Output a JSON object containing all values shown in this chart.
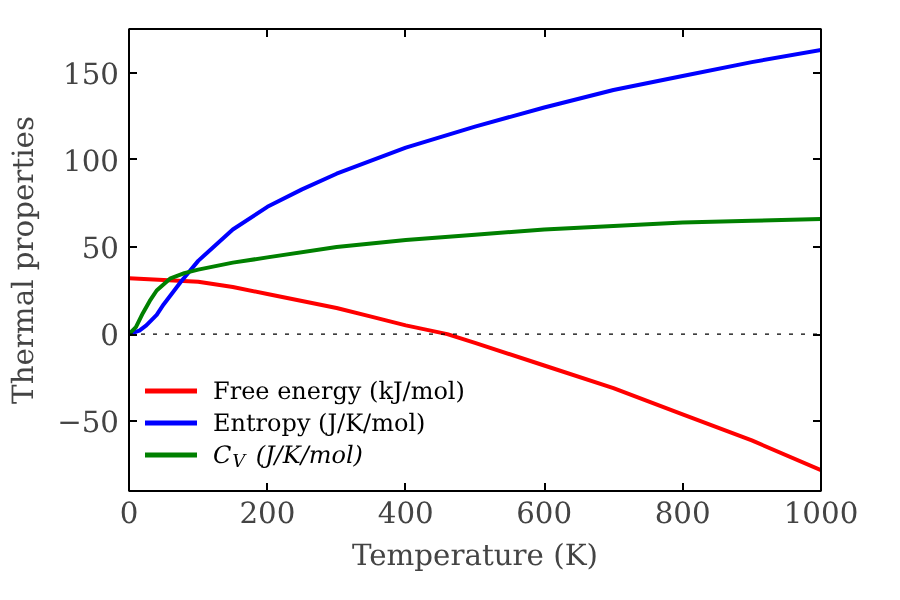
{
  "chart_data": {
    "type": "line",
    "xlabel": "Temperature (K)",
    "ylabel": "Thermal properties",
    "xlim": [
      0,
      1000
    ],
    "xticks": [
      0,
      200,
      400,
      600,
      800,
      1000
    ],
    "ylim": [
      -90,
      175
    ],
    "yticks": [
      -50,
      0,
      50,
      100,
      150
    ],
    "grid": false,
    "legend": "bottom left",
    "line_style": "solid",
    "marker": "none",
    "ref_lines": [
      {
        "axis": "y",
        "value": 0,
        "color": "#000000",
        "line_style": "dotted"
      }
    ],
    "series": [
      {
        "name": "Free energy (kJ/mol)",
        "color": "#ff0000",
        "x": [
          0,
          50,
          100,
          150,
          200,
          250,
          300,
          350,
          400,
          460,
          500,
          600,
          700,
          800,
          900,
          1000
        ],
        "values": [
          32,
          31,
          30,
          27,
          23,
          19,
          15,
          10,
          5,
          0,
          -5,
          -18,
          -31,
          -46,
          -61,
          -78
        ]
      },
      {
        "name": "Entropy (J/K/mol)",
        "color": "#0000ff",
        "x": [
          0,
          15,
          25,
          40,
          50,
          75,
          100,
          150,
          200,
          250,
          300,
          400,
          500,
          600,
          700,
          800,
          900,
          1000
        ],
        "values": [
          0,
          2,
          5,
          11,
          17,
          30,
          42,
          60,
          73,
          83,
          92,
          107,
          119,
          130,
          140,
          148,
          156,
          163
        ]
      },
      {
        "name": "C$_{V}$ (J/K/mol)",
        "color": "#008000",
        "x": [
          0,
          10,
          20,
          30,
          40,
          60,
          80,
          100,
          150,
          200,
          300,
          400,
          500,
          600,
          700,
          800,
          900,
          1000
        ],
        "values": [
          0,
          4,
          12,
          19,
          25,
          32,
          35,
          37,
          41,
          44,
          50,
          54,
          57,
          60,
          62,
          64,
          65,
          66
        ]
      }
    ]
  }
}
